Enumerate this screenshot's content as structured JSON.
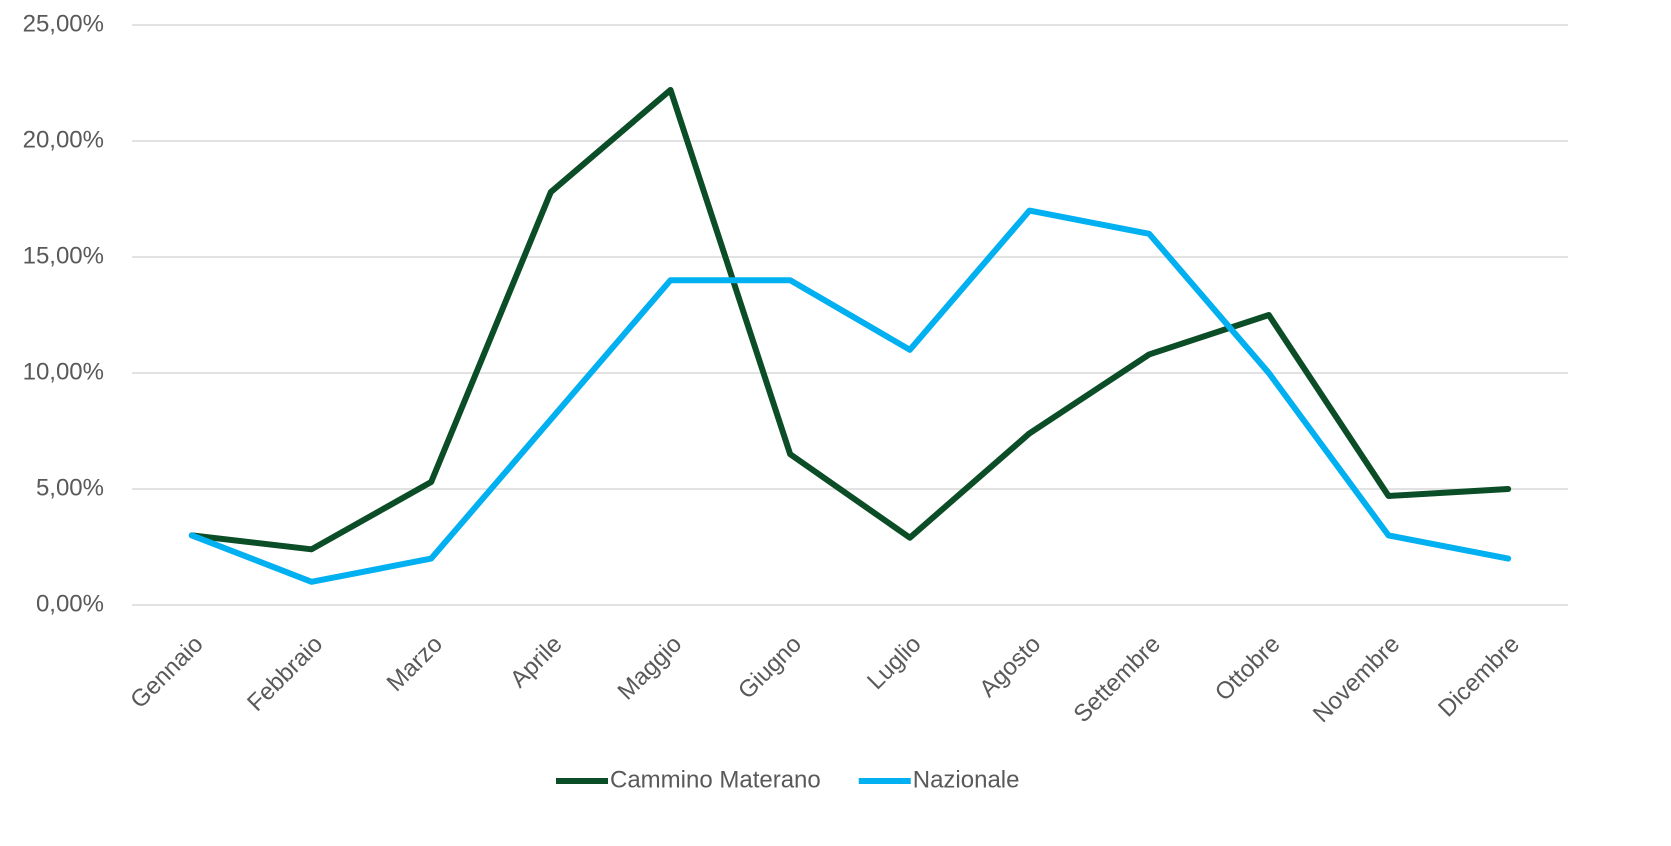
{
  "chart_data": {
    "type": "line",
    "categories": [
      "Gennaio",
      "Febbraio",
      "Marzo",
      "Aprile",
      "Maggio",
      "Giugno",
      "Luglio",
      "Agosto",
      "Settembre",
      "Ottobre",
      "Novembre",
      "Dicembre"
    ],
    "series": [
      {
        "name": "Cammino Materano",
        "color": "#0b4d26",
        "values": [
          3.0,
          2.4,
          5.3,
          17.8,
          22.2,
          6.5,
          2.9,
          7.4,
          10.8,
          12.5,
          4.7,
          5.0
        ]
      },
      {
        "name": "Nazionale",
        "color": "#00b0f0",
        "values": [
          3.0,
          1.0,
          2.0,
          8.0,
          14.0,
          14.0,
          11.0,
          17.0,
          16.0,
          10.0,
          3.0,
          2.0
        ]
      }
    ],
    "ylim": [
      0,
      25
    ],
    "yticks": [
      {
        "value": 0,
        "label": "0,00%"
      },
      {
        "value": 5,
        "label": "5,00%"
      },
      {
        "value": 10,
        "label": "10,00%"
      },
      {
        "value": 15,
        "label": "15,00%"
      },
      {
        "value": 20,
        "label": "20,00%"
      },
      {
        "value": 25,
        "label": "25,00%"
      }
    ],
    "grid": true,
    "legend": "bottom"
  }
}
